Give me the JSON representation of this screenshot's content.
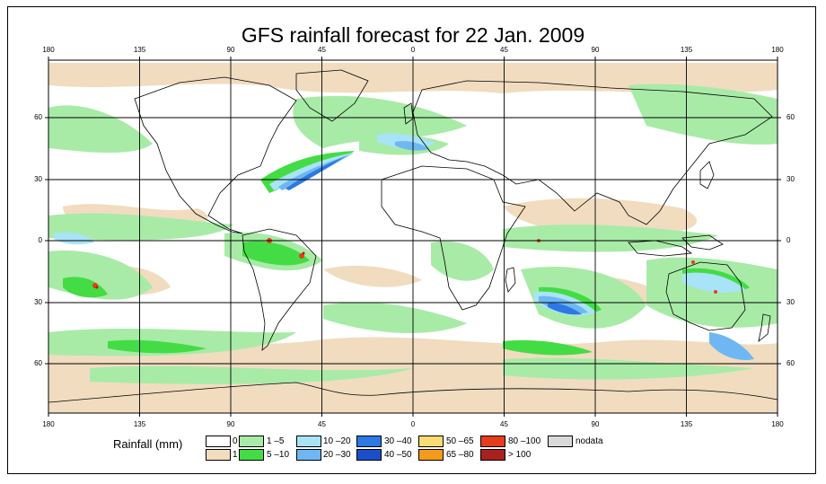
{
  "map": {
    "title": "GFS rainfall forecast for 22 Jan. 2009",
    "longitude_ticks": [
      "180",
      "135",
      "90",
      "45",
      "0",
      "45",
      "90",
      "135",
      "180"
    ],
    "latitude_ticks": [
      "60",
      "30",
      "0",
      "30",
      "60"
    ]
  },
  "legend": {
    "title": "Rainfall (mm)",
    "items": [
      {
        "label": "0",
        "color": "#ffffff"
      },
      {
        "label": "1",
        "color": "#f1dcc0"
      },
      {
        "label": "1 –5",
        "color": "#a8eba7"
      },
      {
        "label": "5 –10",
        "color": "#44dc44"
      },
      {
        "label": "10 –20",
        "color": "#a9e3f7"
      },
      {
        "label": "20 –30",
        "color": "#6fb7f3"
      },
      {
        "label": "30 –40",
        "color": "#2d78e3"
      },
      {
        "label": "40 –50",
        "color": "#1a4fc9"
      },
      {
        "label": "50 –65",
        "color": "#fbdc74"
      },
      {
        "label": "65 –80",
        "color": "#f49b1b"
      },
      {
        "label": "80 –100",
        "color": "#e53c1c"
      },
      {
        "label": "> 100",
        "color": "#a8211c"
      },
      {
        "label": "nodata",
        "color": "#d9d9d9"
      }
    ]
  }
}
